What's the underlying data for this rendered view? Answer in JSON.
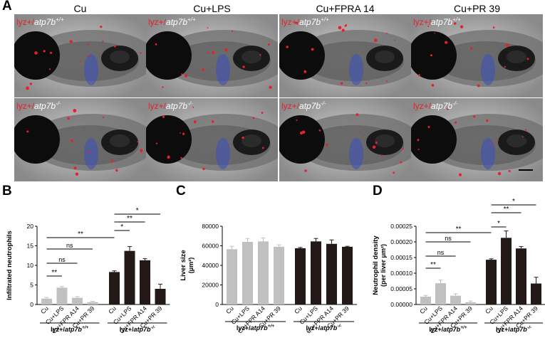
{
  "panels": {
    "a": "A",
    "b": "B",
    "c": "C",
    "d": "D"
  },
  "columns": [
    "Cu",
    "Cu+LPS",
    "Cu+FPRA 14",
    "Cu+PR 39"
  ],
  "micro": {
    "top_prefix": "lyz+/",
    "top_gene": "atp7b",
    "top_sup": "+/+",
    "bottom_prefix": "lyz+/",
    "bottom_gene": "atp7b",
    "bottom_sup": "-/-"
  },
  "group_labels": {
    "wt_prefix": "lyz+/",
    "wt_gene": "atp7b",
    "wt_sup": "+/+",
    "ko_prefix": "lyz+/",
    "ko_gene": "atp7b",
    "ko_sup": "-/-"
  },
  "colors": {
    "gray_bar": "#c0c0c0",
    "dark_bar": "#231a17",
    "red_marker": "#e8202a",
    "blue_stain": "#3a4fc0"
  },
  "chart_data": [
    {
      "id": "B",
      "type": "bar",
      "categories": [
        "Cu",
        "Cu+LPS",
        "Cu+FPR A14",
        "Cu+PR 39",
        "Cu",
        "Cu+LPS",
        "Cu+FPR A14",
        "Cu+PR 39"
      ],
      "values": [
        1.5,
        4.3,
        1.7,
        0.6,
        8.3,
        13.7,
        11.3,
        4.0
      ],
      "errors": [
        0.3,
        0.3,
        0.3,
        0.2,
        0.3,
        1.1,
        0.4,
        1.2
      ],
      "ylabel": "Infiltrated neutrophils",
      "ylim": [
        0,
        20
      ],
      "yticks": [
        "0",
        "5",
        "10",
        "15",
        "20"
      ],
      "significance": [
        {
          "from": 0,
          "to": 1,
          "label": "**"
        },
        {
          "from": 0,
          "to": 2,
          "label": "ns"
        },
        {
          "from": 0,
          "to": 3,
          "label": "ns"
        },
        {
          "from": 0,
          "to": 4,
          "label": "**"
        },
        {
          "from": 4,
          "to": 5,
          "label": "*"
        },
        {
          "from": 4,
          "to": 6,
          "label": "**"
        },
        {
          "from": 4,
          "to": 7,
          "label": "*"
        }
      ]
    },
    {
      "id": "C",
      "type": "bar",
      "categories": [
        "Cu",
        "Cu+LPS",
        "Cu+FPR A14",
        "Cu+PR 39",
        "Cu",
        "Cu+LPS",
        "Cu+FPR A14",
        "Cu+PR 39"
      ],
      "values": [
        56500,
        64000,
        64500,
        59000,
        57500,
        64500,
        62000,
        59000
      ],
      "errors": [
        3000,
        3500,
        3500,
        2000,
        800,
        3000,
        4000,
        500
      ],
      "ylabel": "Liver size",
      "yunit": "(μm²)",
      "ylim": [
        0,
        80000
      ],
      "yticks": [
        "0",
        "20000",
        "40000",
        "60000",
        "80000"
      ],
      "significance": []
    },
    {
      "id": "D",
      "type": "bar",
      "categories": [
        "Cu",
        "Cu+LPS",
        "Cu+FPR A14",
        "Cu+PR 39",
        "Cu",
        "Cu+LPS",
        "Cu+FPR A14",
        "Cu+PR 39"
      ],
      "values": [
        2.5e-05,
        6.8e-05,
        2.8e-05,
        7e-06,
        0.000143,
        0.000213,
        0.000179,
        6.7e-05
      ],
      "errors": [
        4e-06,
        1e-05,
        6e-06,
        4e-06,
        3e-06,
        2.2e-05,
        6e-06,
        2e-05
      ],
      "ylabel": "Neutrophil density",
      "yunit": "(per liver μm²)",
      "ylim": [
        0,
        0.00025
      ],
      "yticks": [
        "0.00000",
        "0.00005",
        "0.00010",
        "0.00015",
        "0.00020",
        "0.00025"
      ],
      "significance": [
        {
          "from": 0,
          "to": 1,
          "label": "**"
        },
        {
          "from": 0,
          "to": 2,
          "label": "ns"
        },
        {
          "from": 0,
          "to": 3,
          "label": "ns"
        },
        {
          "from": 0,
          "to": 4,
          "label": "**"
        },
        {
          "from": 4,
          "to": 5,
          "label": "*"
        },
        {
          "from": 4,
          "to": 6,
          "label": "**"
        },
        {
          "from": 4,
          "to": 7,
          "label": "*"
        }
      ]
    }
  ]
}
